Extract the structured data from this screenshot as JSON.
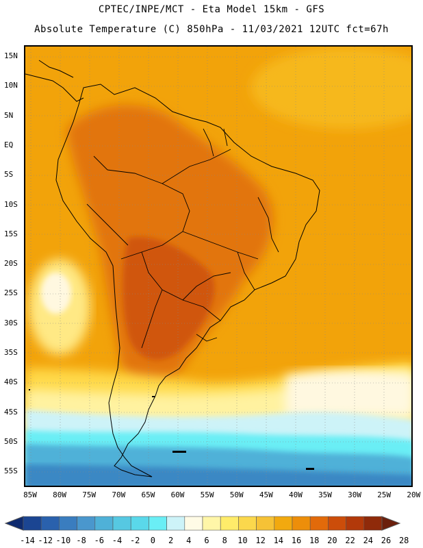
{
  "header": {
    "line1": "CPTEC/INPE/MCT -  Eta Model 15km - GFS",
    "line2": "Absolute Temperature (C) 850hPa - 11/03/2021 12UTC fct=67h"
  },
  "map": {
    "lat_labels": [
      "15N",
      "10N",
      "5N",
      "EQ",
      "5S",
      "10S",
      "15S",
      "20S",
      "25S",
      "30S",
      "35S",
      "40S",
      "45S",
      "50S",
      "55S"
    ],
    "lon_labels": [
      "85W",
      "80W",
      "75W",
      "70W",
      "65W",
      "60W",
      "55W",
      "50W",
      "45W",
      "40W",
      "35W",
      "30W",
      "25W",
      "20W"
    ],
    "colors": {
      "ocean_warm": "#f2a30a",
      "continent_hot": "#e2740f",
      "core_hot": "#d0560d",
      "mild_yellow": "#ffe985",
      "pale": "#fff8e0",
      "cool_cyan": "#5fe6f0",
      "cold_blue": "#3aa6cf",
      "boundary": "#000000"
    }
  },
  "colorbar": {
    "labels": [
      "-14",
      "-12",
      "-10",
      "-8",
      "-6",
      "-4",
      "-2",
      "0",
      "2",
      "4",
      "6",
      "8",
      "10",
      "12",
      "14",
      "16",
      "18",
      "20",
      "22",
      "24",
      "26",
      "28"
    ],
    "colors": [
      "#0e2a6e",
      "#1b4592",
      "#2a61ad",
      "#3a7dbf",
      "#4a97cd",
      "#4fb1d8",
      "#56c8e2",
      "#5ad8ea",
      "#6aeef5",
      "#cdf3f8",
      "#fffbe6",
      "#fff6a8",
      "#ffec6a",
      "#fbd84c",
      "#f6c236",
      "#f2a90f",
      "#ed8e0a",
      "#e26a0a",
      "#cc4d0a",
      "#b2390a",
      "#8f2a0a",
      "#6b1f0c"
    ]
  }
}
